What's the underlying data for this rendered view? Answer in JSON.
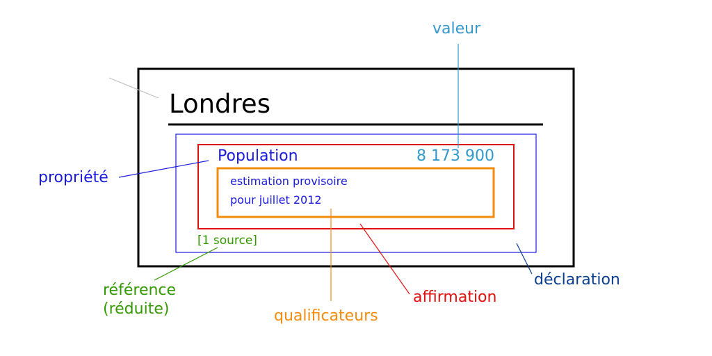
{
  "item": {
    "title": "Londres",
    "property": "Population",
    "value": "8 173 900",
    "qualifier_line1": "estimation provisoire",
    "qualifier_line2": "pour juillet 2012",
    "reference": "[1 source]"
  },
  "annotations": {
    "valeur": "valeur",
    "propriete": "propriété",
    "reference_line1": "référence",
    "reference_line2": "(réduite)",
    "qualificateurs": "qualificateurs",
    "affirmation": "affirmation",
    "declaration": "déclaration"
  },
  "colors": {
    "item_border": "#000000",
    "declaration": "#1a1adb",
    "declaration_label": "#0a3d8f",
    "affirmation": "#e01010",
    "qualifier": "#f28c0f",
    "value": "#3399cc",
    "reference": "#339900",
    "pointer_grey": "#c0c0c0"
  }
}
